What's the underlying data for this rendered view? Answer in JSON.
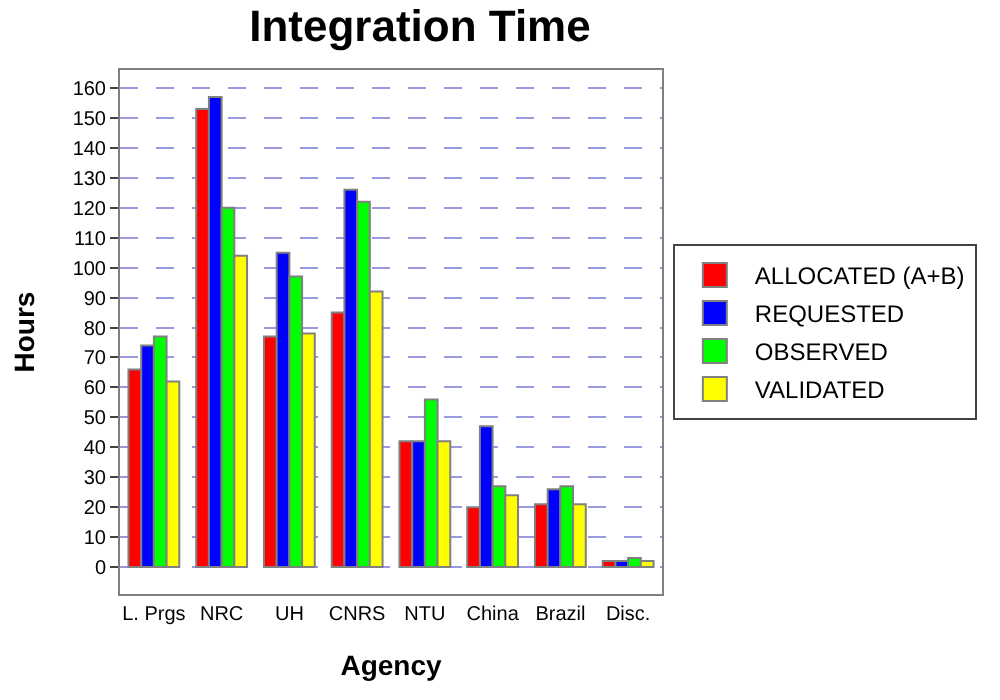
{
  "chart_data": {
    "type": "bar",
    "title": "Integration Time",
    "xlabel": "Agency",
    "ylabel": "Hours",
    "categories": [
      "L. Prgs",
      "NRC",
      "UH",
      "CNRS",
      "NTU",
      "China",
      "Brazil",
      "Disc."
    ],
    "series": [
      {
        "name": "ALLOCATED (A+B)",
        "color": "#ff0000",
        "values": [
          66,
          153,
          77,
          85,
          42,
          20,
          21,
          2
        ]
      },
      {
        "name": "REQUESTED",
        "color": "#0000ff",
        "values": [
          74,
          157,
          105,
          126,
          42,
          47,
          26,
          2
        ]
      },
      {
        "name": "OBSERVED",
        "color": "#00ff00",
        "values": [
          77,
          120,
          97,
          122,
          56,
          27,
          27,
          3
        ]
      },
      {
        "name": "VALIDATED",
        "color": "#ffff00",
        "values": [
          62,
          104,
          78,
          92,
          42,
          24,
          21,
          2
        ]
      }
    ],
    "ylim": [
      -9,
      166
    ],
    "yticks": [
      0,
      10,
      20,
      30,
      40,
      50,
      60,
      70,
      80,
      90,
      100,
      110,
      120,
      130,
      140,
      150,
      160
    ],
    "grid": "y",
    "legend": "right"
  }
}
